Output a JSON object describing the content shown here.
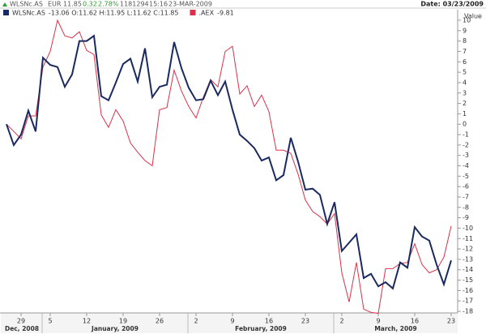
{
  "header": {
    "symbol": "WLSNc.AS",
    "currency": "EUR",
    "last": "11.85",
    "change": "0.32",
    "change_pct": "2.78%",
    "volume": "1181294",
    "time": "15:16",
    "date": "23-MAR-2009",
    "date_right": "Date: 03/23/2009"
  },
  "chart_data": {
    "type": "line",
    "y_axis_label": "Value",
    "categories": [
      null,
      null,
      "29",
      null,
      null,
      null,
      "5",
      null,
      null,
      null,
      null,
      "12",
      null,
      null,
      null,
      null,
      "19",
      null,
      null,
      null,
      null,
      "26",
      null,
      null,
      null,
      null,
      "2",
      null,
      null,
      null,
      null,
      "9",
      null,
      null,
      null,
      null,
      "16",
      null,
      null,
      null,
      null,
      "23",
      null,
      null,
      null,
      null,
      "2",
      null,
      null,
      null,
      null,
      "9",
      null,
      null,
      null,
      null,
      "16",
      null,
      null,
      null,
      null,
      "23"
    ],
    "x_groups": [
      "Dec, 2008",
      "January, 2009",
      "February, 2009",
      "March, 2009"
    ],
    "series": [
      {
        "name": "WLSNc.AS",
        "legend_text": "-13.06 O:11.62 H:11.95 L:11.62 C:11.85",
        "color": "#1a2a5e",
        "width": 2,
        "values": [
          0,
          -2,
          -1,
          1.3,
          -0.7,
          6.4,
          5.7,
          5.5,
          3.6,
          4.8,
          8,
          8,
          8.5,
          2.7,
          2.3,
          4,
          5.8,
          6.3,
          4.1,
          7.3,
          2.6,
          3.6,
          3.8,
          7.9,
          5.4,
          3.5,
          2.3,
          2.4,
          4.2,
          2.8,
          4.1,
          1.4,
          -1,
          -1.6,
          -2.3,
          -3.5,
          -3.2,
          -5.4,
          -4.9,
          -1.3,
          -3.6,
          -6.3,
          -6.2,
          -6.8,
          -9.6,
          -7.5,
          -12.2,
          -11.4,
          -10.6,
          -14.8,
          -14.4,
          -15.6,
          -15.2,
          -15.8,
          -13.3,
          -13.8,
          -9.9,
          -10.8,
          -11.2,
          -13.5,
          -15.4,
          -13.1
        ]
      },
      {
        "name": ".AEX",
        "legend_text": "-9.81",
        "color": "#d9324a",
        "width": 1,
        "values": [
          0,
          -0.7,
          -1.4,
          0.8,
          0.8,
          5.5,
          7,
          10,
          8.5,
          8.3,
          8.9,
          7.1,
          6.7,
          0.9,
          -0.3,
          1.4,
          0.3,
          -1.8,
          -2.7,
          -3.5,
          -4,
          1.4,
          1.6,
          5.2,
          3.2,
          1.7,
          0.6,
          2.6,
          4.3,
          3.6,
          7,
          7.5,
          2.9,
          3.7,
          1.7,
          2.8,
          1.2,
          -2.5,
          -2.5,
          -2.8,
          -4.8,
          -7.3,
          -8.4,
          -8.9,
          -9.6,
          -8.6,
          -14.3,
          -17.1,
          -13.3,
          -17.8,
          -18.1,
          -18.2,
          -13.9,
          -13.9,
          -13.4,
          -13.3,
          -11.5,
          -13.5,
          -14.3,
          -14,
          -12.8,
          -9.8
        ]
      }
    ],
    "ylim": [
      -18.5,
      10.5
    ],
    "yticks": [
      10,
      9,
      8,
      7,
      6,
      5,
      4,
      3,
      2,
      1,
      0,
      -1,
      -2,
      -3,
      -4,
      -5,
      -6,
      -7,
      -8,
      -9,
      -10,
      -11,
      -12,
      -13,
      -14,
      -15,
      -16,
      -17,
      -18
    ],
    "grid": false
  }
}
